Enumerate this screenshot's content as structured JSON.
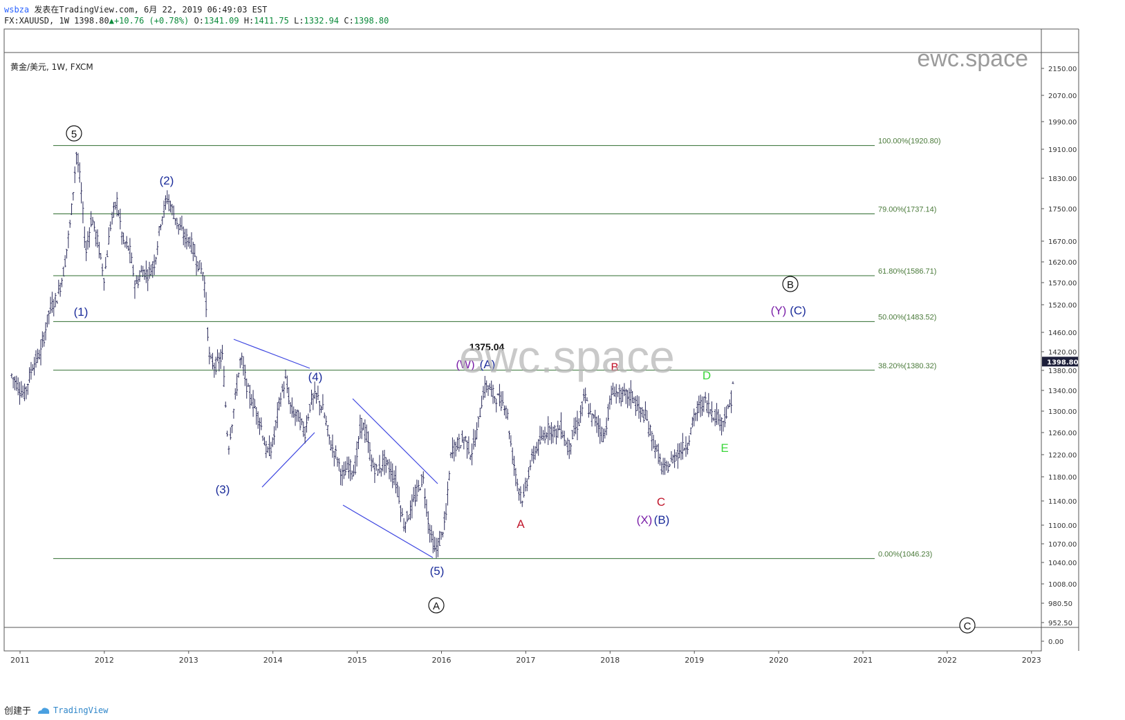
{
  "header": {
    "user": "wsbza",
    "published": "发表在TradingView.com, 6月 22, 2019 06:49:03 EST",
    "symbol_line_prefix": "FX:XAUUSD, 1W 1398.80",
    "change": "+10.76 (+0.78%)",
    "o_label": "O:",
    "o": "1341.09",
    "h_label": "H:",
    "h": "1411.75",
    "l_label": "L:",
    "l": "1332.94",
    "c_label": "C:",
    "c": "1398.80"
  },
  "pane_label": "黄金/美元, 1W, FXCM",
  "watermark": "ewc.space",
  "footer": {
    "created": "创建于",
    "brand": "TradingView"
  },
  "colors": {
    "fib": "#2e6b2e",
    "fib_text": "#4a7a3a",
    "candle": "#2a2a5a",
    "trendline": "#3b44e0",
    "blue": "#1a2b9a",
    "purple": "#7a1fa8",
    "red": "#c0162b",
    "green": "#3ad63a",
    "price_tag": "#1d1f3a"
  },
  "chart_data": {
    "type": "line",
    "title": "",
    "xlabel": "",
    "ylabel": "",
    "x_ticks": [
      "2011",
      "2012",
      "2013",
      "2014",
      "2015",
      "2016",
      "2017",
      "2018",
      "2019",
      "2020",
      "2021",
      "2022",
      "2023"
    ],
    "y_ticks": [
      "2150.00",
      "2070.00",
      "1990.00",
      "1910.00",
      "1830.00",
      "1750.00",
      "1670.00",
      "1620.00",
      "1570.00",
      "1520.00",
      "1460.00",
      "1420.00",
      "1380.00",
      "1340.00",
      "1300.00",
      "1260.00",
      "1220.00",
      "1180.00",
      "1140.00",
      "1100.00",
      "1070.00",
      "1040.00",
      "1008.00",
      "980.50",
      "952.50",
      "0.00"
    ],
    "last_price": "1398.80",
    "peak_label": "1375.04",
    "fib_levels": [
      {
        "label": "100.00%(1920.80)",
        "price": 1920.8
      },
      {
        "label": "79.00%(1737.14)",
        "price": 1737.14
      },
      {
        "label": "61.80%(1586.71)",
        "price": 1586.71
      },
      {
        "label": "50.00%(1483.52)",
        "price": 1483.52
      },
      {
        "label": "38.20%(1380.32)",
        "price": 1380.32
      },
      {
        "label": "0.00%(1046.23)",
        "price": 1046.23
      }
    ],
    "series": [
      {
        "values": [
          [
            2010.9,
            1370
          ],
          [
            2011.05,
            1330
          ],
          [
            2011.15,
            1390
          ],
          [
            2011.25,
            1420
          ],
          [
            2011.35,
            1510
          ],
          [
            2011.45,
            1540
          ],
          [
            2011.52,
            1600
          ],
          [
            2011.6,
            1720
          ],
          [
            2011.67,
            1900
          ],
          [
            2011.72,
            1810
          ],
          [
            2011.78,
            1640
          ],
          [
            2011.85,
            1730
          ],
          [
            2011.92,
            1670
          ],
          [
            2012.0,
            1580
          ],
          [
            2012.08,
            1720
          ],
          [
            2012.15,
            1770
          ],
          [
            2012.22,
            1670
          ],
          [
            2012.3,
            1650
          ],
          [
            2012.37,
            1560
          ],
          [
            2012.45,
            1600
          ],
          [
            2012.52,
            1590
          ],
          [
            2012.6,
            1620
          ],
          [
            2012.67,
            1720
          ],
          [
            2012.75,
            1780
          ],
          [
            2012.8,
            1750
          ],
          [
            2012.88,
            1710
          ],
          [
            2012.95,
            1680
          ],
          [
            2013.02,
            1670
          ],
          [
            2013.1,
            1620
          ],
          [
            2013.18,
            1590
          ],
          [
            2013.25,
            1400
          ],
          [
            2013.32,
            1390
          ],
          [
            2013.4,
            1410
          ],
          [
            2013.47,
            1230
          ],
          [
            2013.55,
            1320
          ],
          [
            2013.62,
            1410
          ],
          [
            2013.7,
            1340
          ],
          [
            2013.78,
            1310
          ],
          [
            2013.85,
            1280
          ],
          [
            2013.93,
            1220
          ],
          [
            2014.0,
            1240
          ],
          [
            2014.08,
            1320
          ],
          [
            2014.15,
            1360
          ],
          [
            2014.22,
            1300
          ],
          [
            2014.3,
            1290
          ],
          [
            2014.38,
            1260
          ],
          [
            2014.45,
            1320
          ],
          [
            2014.52,
            1330
          ],
          [
            2014.6,
            1300
          ],
          [
            2014.68,
            1240
          ],
          [
            2014.75,
            1220
          ],
          [
            2014.83,
            1180
          ],
          [
            2014.9,
            1200
          ],
          [
            2014.97,
            1190
          ],
          [
            2015.05,
            1280
          ],
          [
            2015.1,
            1260
          ],
          [
            2015.18,
            1200
          ],
          [
            2015.25,
            1190
          ],
          [
            2015.32,
            1210
          ],
          [
            2015.4,
            1190
          ],
          [
            2015.47,
            1170
          ],
          [
            2015.55,
            1100
          ],
          [
            2015.62,
            1120
          ],
          [
            2015.7,
            1150
          ],
          [
            2015.78,
            1180
          ],
          [
            2015.85,
            1100
          ],
          [
            2015.92,
            1060
          ],
          [
            2015.97,
            1070
          ],
          [
            2016.05,
            1110
          ],
          [
            2016.12,
            1230
          ],
          [
            2016.2,
            1240
          ],
          [
            2016.28,
            1250
          ],
          [
            2016.35,
            1220
          ],
          [
            2016.42,
            1260
          ],
          [
            2016.5,
            1340
          ],
          [
            2016.55,
            1350
          ],
          [
            2016.62,
            1330
          ],
          [
            2016.7,
            1320
          ],
          [
            2016.77,
            1310
          ],
          [
            2016.83,
            1230
          ],
          [
            2016.9,
            1170
          ],
          [
            2016.97,
            1140
          ],
          [
            2017.05,
            1200
          ],
          [
            2017.12,
            1230
          ],
          [
            2017.2,
            1250
          ],
          [
            2017.28,
            1270
          ],
          [
            2017.35,
            1260
          ],
          [
            2017.42,
            1270
          ],
          [
            2017.5,
            1230
          ],
          [
            2017.57,
            1260
          ],
          [
            2017.63,
            1280
          ],
          [
            2017.7,
            1330
          ],
          [
            2017.77,
            1290
          ],
          [
            2017.85,
            1280
          ],
          [
            2017.93,
            1250
          ],
          [
            2018.0,
            1320
          ],
          [
            2018.05,
            1340
          ],
          [
            2018.12,
            1330
          ],
          [
            2018.2,
            1330
          ],
          [
            2018.27,
            1330
          ],
          [
            2018.35,
            1300
          ],
          [
            2018.42,
            1290
          ],
          [
            2018.5,
            1250
          ],
          [
            2018.57,
            1220
          ],
          [
            2018.63,
            1190
          ],
          [
            2018.7,
            1200
          ],
          [
            2018.78,
            1220
          ],
          [
            2018.85,
            1230
          ],
          [
            2018.92,
            1240
          ],
          [
            2019.0,
            1290
          ],
          [
            2019.07,
            1310
          ],
          [
            2019.13,
            1320
          ],
          [
            2019.2,
            1300
          ],
          [
            2019.27,
            1290
          ],
          [
            2019.33,
            1280
          ],
          [
            2019.4,
            1300
          ],
          [
            2019.45,
            1330
          ],
          [
            2019.47,
            1399
          ]
        ]
      }
    ],
    "annotations": [
      {
        "text": "5",
        "circled": true,
        "color": "black"
      },
      {
        "text": "(1)",
        "color": "blue"
      },
      {
        "text": "(2)",
        "color": "blue"
      },
      {
        "text": "(3)",
        "color": "blue"
      },
      {
        "text": "(4)",
        "color": "blue"
      },
      {
        "text": "(5)",
        "color": "blue"
      },
      {
        "text": "A",
        "circled": true,
        "color": "black"
      },
      {
        "text": "(W)",
        "color": "purple"
      },
      {
        "text": "(A)",
        "color": "blue"
      },
      {
        "text": "A",
        "color": "red"
      },
      {
        "text": "B",
        "color": "red"
      },
      {
        "text": "C",
        "color": "red"
      },
      {
        "text": "(X)",
        "color": "purple"
      },
      {
        "text": "(B)",
        "color": "blue"
      },
      {
        "text": "D",
        "color": "green"
      },
      {
        "text": "E",
        "color": "green"
      },
      {
        "text": "B",
        "circled": true,
        "color": "black"
      },
      {
        "text": "(Y)",
        "color": "purple"
      },
      {
        "text": "(C)",
        "color": "blue"
      },
      {
        "text": "C",
        "circled": true,
        "color": "black"
      }
    ]
  }
}
